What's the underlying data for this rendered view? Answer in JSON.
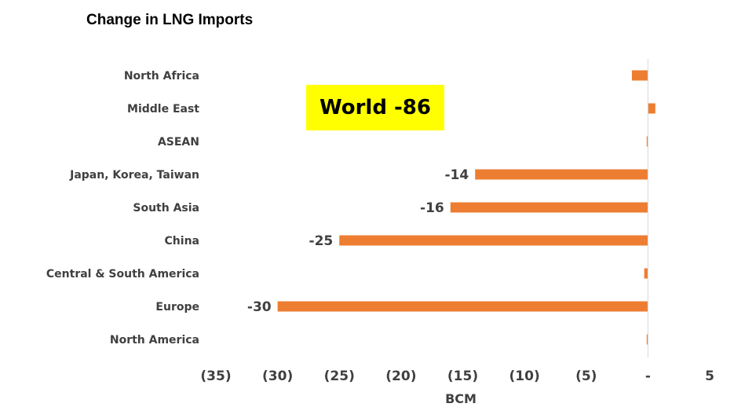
{
  "chart_data": {
    "type": "bar",
    "orientation": "horizontal",
    "title": "Change in LNG Imports",
    "xlabel": "BCM",
    "ylabel": "",
    "categories": [
      "North Africa",
      "Middle East",
      "ASEAN",
      "Japan, Korea, Taiwan",
      "South Asia",
      "China",
      "Central & South America",
      "Europe",
      "North America"
    ],
    "values": [
      -1.3,
      0.6,
      -0.1,
      -14,
      -16,
      -25,
      -0.3,
      -30,
      -0.1
    ],
    "data_labels": [
      "",
      "",
      "",
      "-14",
      "-16",
      "-25",
      "",
      "-30",
      ""
    ],
    "xlim": [
      -35,
      5
    ],
    "xticks": [
      -35,
      -30,
      -25,
      -20,
      -15,
      -10,
      -5,
      0,
      5
    ],
    "xtick_labels": [
      "(35)",
      "(30)",
      "(25)",
      "(20)",
      "(15)",
      "(10)",
      "(5)",
      "-",
      "5"
    ],
    "grid": false,
    "bar_color": "#ED7D31",
    "annotation": {
      "text": "World -86",
      "background": "#FFFF00"
    }
  }
}
